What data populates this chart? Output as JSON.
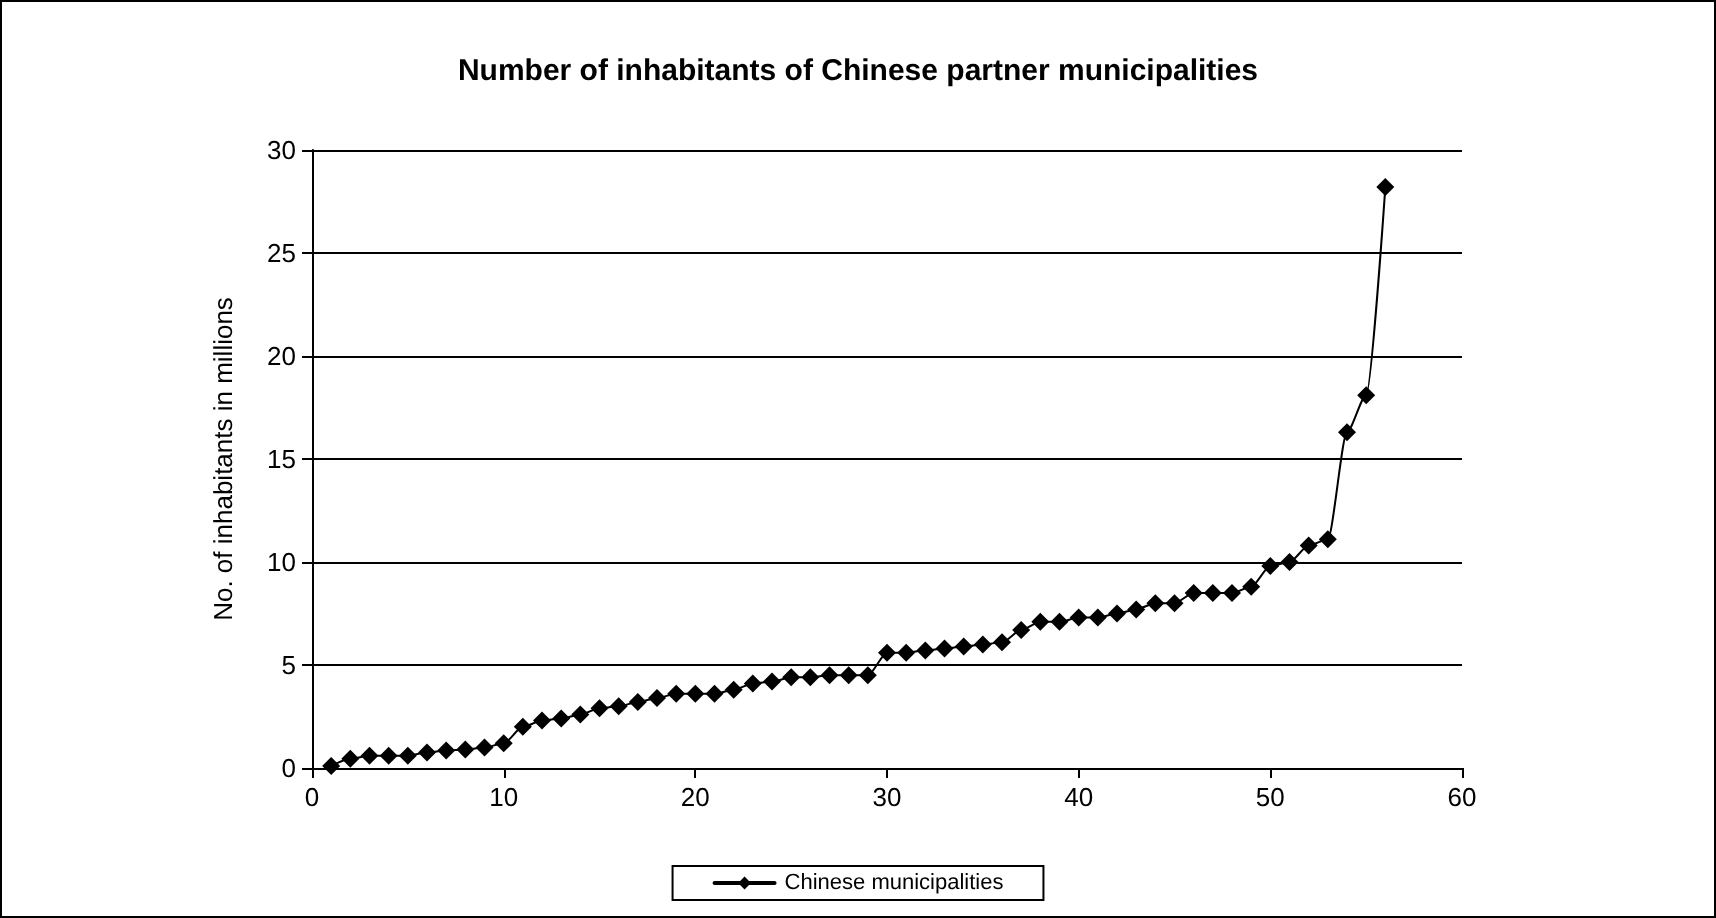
{
  "chart_data": {
    "type": "line",
    "title": "Number of inhabitants of Chinese partner municipalities",
    "ylabel": "No. of inhabitants in millions",
    "x": [
      1,
      2,
      3,
      4,
      5,
      6,
      7,
      8,
      9,
      10,
      11,
      12,
      13,
      14,
      15,
      16,
      17,
      18,
      19,
      20,
      21,
      22,
      23,
      24,
      25,
      26,
      27,
      28,
      29,
      30,
      31,
      32,
      33,
      34,
      35,
      36,
      37,
      38,
      39,
      40,
      41,
      42,
      43,
      44,
      45,
      46,
      47,
      48,
      49,
      50,
      51,
      52,
      53,
      54,
      55,
      56
    ],
    "series": [
      {
        "name": "Chinese municipalities",
        "color": "#000000",
        "values": [
          0.1,
          0.45,
          0.6,
          0.6,
          0.6,
          0.75,
          0.85,
          0.9,
          1.0,
          1.2,
          2.0,
          2.3,
          2.4,
          2.6,
          2.9,
          3.0,
          3.2,
          3.4,
          3.6,
          3.6,
          3.6,
          3.8,
          4.1,
          4.2,
          4.4,
          4.4,
          4.5,
          4.5,
          4.5,
          5.6,
          5.6,
          5.7,
          5.8,
          5.9,
          6.0,
          6.1,
          6.7,
          7.1,
          7.1,
          7.3,
          7.3,
          7.5,
          7.7,
          8.0,
          8.0,
          8.5,
          8.5,
          8.5,
          8.8,
          9.8,
          10.0,
          10.8,
          11.1,
          16.3,
          18.1,
          28.2
        ]
      }
    ],
    "xlim": [
      0,
      60
    ],
    "xticks": [
      0,
      10,
      20,
      30,
      40,
      50,
      60
    ],
    "ylim": [
      0,
      30
    ],
    "yticks": [
      0,
      5,
      10,
      15,
      20,
      25,
      30
    ],
    "grid": "y",
    "legend": "bottom",
    "marker": "diamond",
    "line_style": "solid"
  }
}
